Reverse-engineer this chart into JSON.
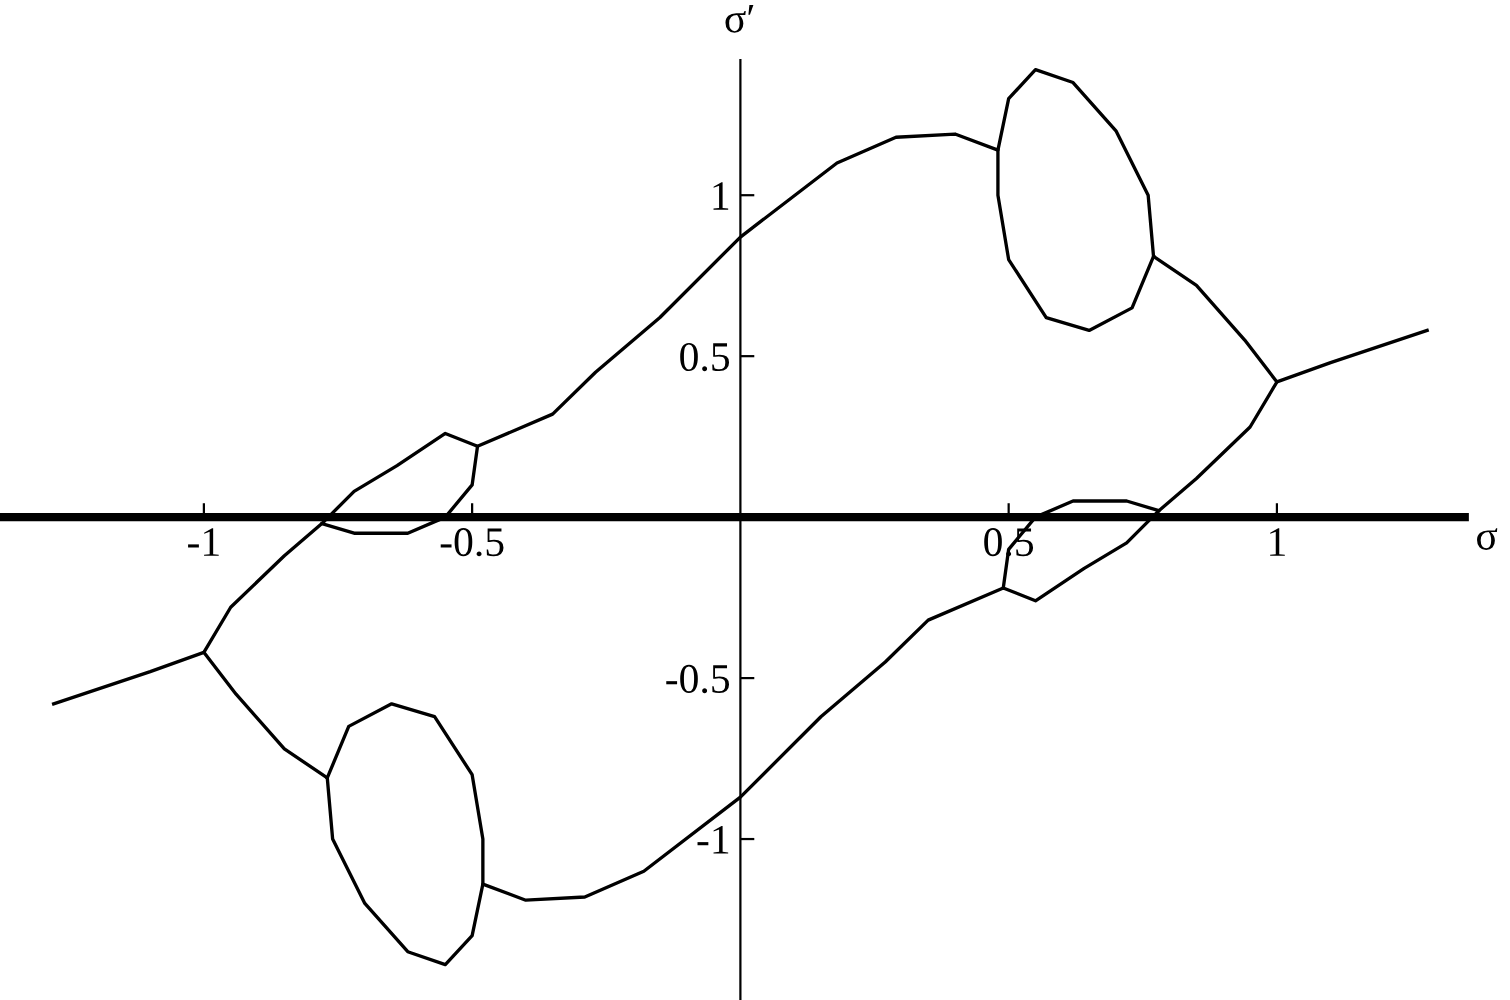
{
  "chart_data": {
    "type": "line",
    "xlabel": "σ",
    "ylabel": "σ′",
    "xlim": [
      -1.38,
      1.35
    ],
    "ylim": [
      -1.5,
      1.42
    ],
    "xticks": [
      -1,
      -0.5,
      0.5,
      1
    ],
    "yticks": [
      -1,
      -0.5,
      0.5,
      1
    ],
    "grid": false,
    "legend": false,
    "marker": "none",
    "line_style": "solid",
    "series": [
      {
        "color": "#000000",
        "x": [
          -1.28,
          -1.1,
          -1.0,
          -0.95,
          -0.85,
          -0.78,
          -0.72,
          -0.64,
          -0.55,
          -0.49,
          -0.35,
          -0.27,
          -0.15,
          0,
          0.18,
          0.29,
          0.4,
          0.48,
          0.5,
          0.55,
          0.62,
          0.7,
          0.76,
          0.77,
          0.85,
          0.94,
          1.0,
          1.1,
          1.28
        ],
        "values": [
          -0.58,
          -0.48,
          -0.42,
          -0.28,
          -0.12,
          -0.02,
          0.08,
          0.16,
          0.26,
          0.22,
          0.32,
          0.45,
          0.62,
          0.87,
          1.1,
          1.18,
          1.19,
          1.14,
          1.3,
          1.39,
          1.35,
          1.2,
          1.0,
          0.81,
          0.72,
          0.55,
          0.42,
          0.48,
          0.58
        ]
      },
      {
        "color": "#000000",
        "x": [
          1.0,
          0.95,
          0.85,
          0.78,
          0.72,
          0.64,
          0.55,
          0.49,
          0.35,
          0.27,
          0.15,
          0,
          -0.18,
          -0.29,
          -0.4,
          -0.48,
          -0.5,
          -0.55,
          -0.62,
          -0.7,
          -0.76,
          -0.77,
          -0.85,
          -0.94,
          -1.0
        ],
        "values": [
          0.42,
          0.28,
          0.12,
          0.02,
          -0.08,
          -0.16,
          -0.26,
          -0.22,
          -0.32,
          -0.45,
          -0.62,
          -0.87,
          -1.1,
          -1.18,
          -1.19,
          -1.14,
          -1.3,
          -1.39,
          -1.35,
          -1.2,
          -1.0,
          -0.81,
          -0.72,
          -0.55,
          -0.42
        ]
      },
      {
        "color": "#000000",
        "x": [
          -0.78,
          -0.72,
          -0.62,
          -0.55,
          -0.5,
          -0.49
        ],
        "values": [
          -0.02,
          -0.05,
          -0.05,
          0.0,
          0.1,
          0.22
        ]
      },
      {
        "color": "#000000",
        "x": [
          0.77,
          0.73,
          0.65,
          0.57,
          0.5,
          0.48,
          0.48
        ],
        "values": [
          0.81,
          0.65,
          0.58,
          0.62,
          0.8,
          1.0,
          1.14
        ]
      },
      {
        "color": "#000000",
        "x": [
          0.78,
          0.72,
          0.62,
          0.55,
          0.5,
          0.49
        ],
        "values": [
          0.02,
          0.05,
          0.05,
          0.0,
          -0.1,
          -0.22
        ]
      },
      {
        "color": "#000000",
        "x": [
          -0.77,
          -0.73,
          -0.65,
          -0.57,
          -0.5,
          -0.48,
          -0.48
        ],
        "values": [
          -0.81,
          -0.65,
          -0.58,
          -0.62,
          -0.8,
          -1.0,
          -1.14
        ]
      }
    ]
  }
}
